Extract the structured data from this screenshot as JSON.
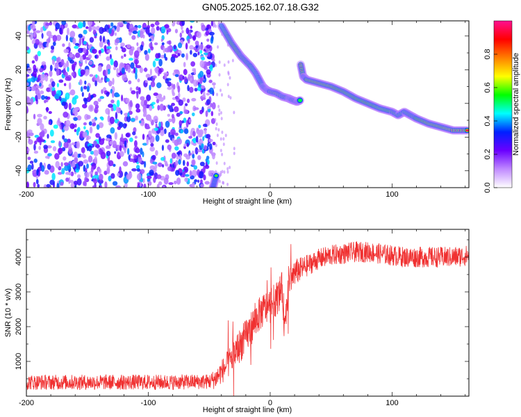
{
  "title": "GN05.2025.162.07.18.G32",
  "chart_data": [
    {
      "type": "heatmap",
      "xlabel": "Height of straight line (km)",
      "ylabel": "Frequency (Hz)",
      "xlim": [
        -200,
        163
      ],
      "ylim": [
        -50,
        49
      ],
      "x_ticks": [
        -200,
        -100,
        0,
        100
      ],
      "y_ticks": [
        -40,
        -20,
        0,
        20,
        40
      ],
      "colorbar": {
        "label": "Normalized spectral amplitude",
        "range": [
          0,
          1
        ],
        "ticks": [
          0.0,
          0.2,
          0.4,
          0.6,
          0.8
        ],
        "colors": [
          "#ffffff",
          "#c08aff",
          "#6b00ff",
          "#0020ff",
          "#00ffff",
          "#00ff00",
          "#ffff00",
          "#ff8000",
          "#ff0000",
          "#ff1090"
        ]
      },
      "noise_region": {
        "x_range": [
          -200,
          -46
        ],
        "amplitude": [
          0.1,
          0.35
        ]
      },
      "track": {
        "x": [
          -47,
          -44,
          -40,
          -36,
          -32,
          -28,
          -24,
          -20,
          -16,
          -12,
          -9,
          -6,
          -3,
          0,
          5,
          10,
          15,
          18,
          22,
          25,
          25,
          27,
          30,
          40,
          50,
          60,
          70,
          80,
          90,
          100,
          105,
          110,
          115,
          120,
          130,
          140,
          150,
          163
        ],
        "y": [
          -50,
          -42,
          46,
          41,
          36,
          32,
          28,
          25,
          22,
          18,
          14,
          10,
          8,
          7,
          6,
          4,
          3,
          2,
          1,
          2,
          23,
          16,
          14,
          12,
          10,
          7,
          3,
          0,
          -3,
          -5,
          -7,
          -5,
          -7,
          -9,
          -12,
          -14,
          -16,
          -16
        ],
        "amplitude": [
          0.5,
          0.6,
          0.7,
          0.8,
          0.85,
          0.9,
          0.9,
          0.85,
          0.8,
          0.75,
          0.75,
          0.8,
          0.85,
          0.9,
          0.95,
          0.9,
          0.9,
          0.85,
          0.85,
          0.8,
          0.95,
          0.9,
          0.9,
          0.9,
          0.9,
          0.85,
          0.85,
          0.85,
          0.8,
          0.85,
          0.85,
          0.8,
          0.85,
          0.85,
          0.9,
          0.9,
          0.95,
          0.95
        ]
      }
    },
    {
      "type": "line",
      "xlabel": "Height of straight line (km)",
      "ylabel": "SNR (10 * v/v)",
      "xlim": [
        -200,
        163
      ],
      "ylim": [
        0,
        4800
      ],
      "x_ticks": [
        -200,
        -100,
        0,
        100
      ],
      "y_ticks": [
        1000,
        2000,
        3000,
        4000
      ],
      "color": "#f03030",
      "series": [
        {
          "name": "",
          "x": [
            -200,
            -160,
            -120,
            -80,
            -50,
            -45,
            -40,
            -35,
            -30,
            -25,
            -20,
            -15,
            -10,
            -5,
            0,
            5,
            10,
            12,
            15,
            20,
            25,
            30,
            35,
            40,
            50,
            60,
            70,
            80,
            90,
            100,
            110,
            120,
            130,
            140,
            150,
            163
          ],
          "y": [
            400,
            400,
            400,
            400,
            420,
            500,
            700,
            900,
            1200,
            1450,
            1700,
            2000,
            2300,
            2500,
            2600,
            2800,
            3100,
            1800,
            3300,
            3550,
            3650,
            3750,
            3850,
            3950,
            4050,
            4100,
            4150,
            4150,
            4100,
            4050,
            4000,
            4000,
            4000,
            4000,
            4000,
            4050
          ],
          "noise_amplitude": [
            220,
            220,
            220,
            220,
            220,
            300,
            350,
            400,
            450,
            500,
            500,
            500,
            500,
            500,
            500,
            500,
            500,
            500,
            450,
            400,
            350,
            320,
            300,
            300,
            300,
            300,
            300,
            300,
            300,
            300,
            300,
            300,
            300,
            300,
            300,
            300
          ]
        }
      ]
    }
  ]
}
